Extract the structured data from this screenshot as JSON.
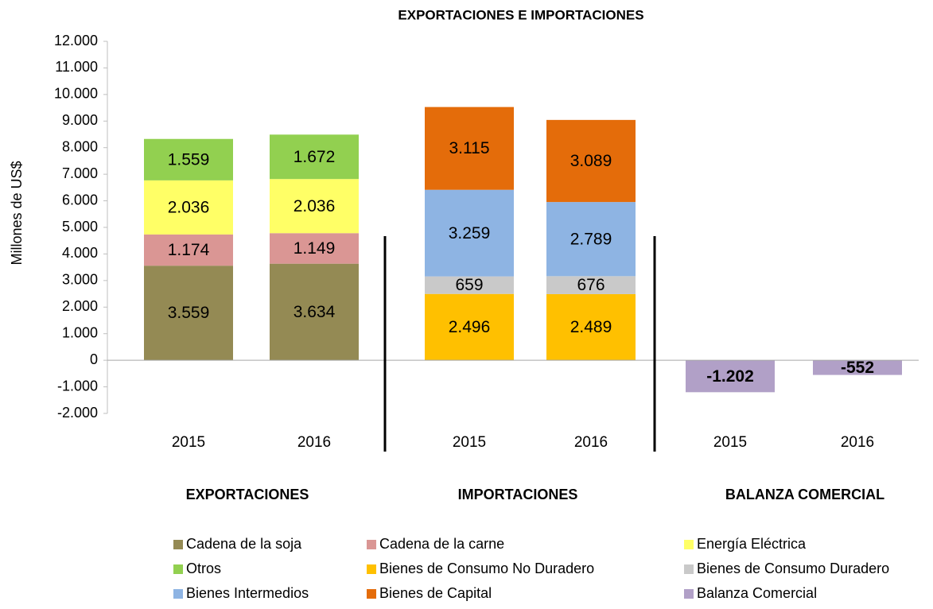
{
  "chart_data": {
    "type": "stacked_bar",
    "title": "EXPORTACIONES   E  IMPORTACIONES",
    "y_axis_label": "Millones de US$",
    "categories": [
      "2015",
      "2016",
      "2015",
      "2016",
      "2015",
      "2016"
    ],
    "groups": [
      "EXPORTACIONES",
      "IMPORTACIONES",
      "BALANZA COMERCIAL"
    ],
    "ylim": [
      -2000,
      12000
    ],
    "yticks": [
      {
        "value": -2000,
        "label": "-2.000"
      },
      {
        "value": -1000,
        "label": "-1.000"
      },
      0,
      {
        "value": 1000,
        "label": "1.000"
      },
      {
        "value": 2000,
        "label": "2.000"
      },
      {
        "value": 3000,
        "label": "3.000"
      },
      {
        "value": 4000,
        "label": "4.000"
      },
      {
        "value": 5000,
        "label": "5.000"
      },
      {
        "value": 6000,
        "label": "6.000"
      },
      {
        "value": 7000,
        "label": "7.000"
      },
      {
        "value": 8000,
        "label": "8.000"
      },
      {
        "value": 9000,
        "label": "9.000"
      },
      {
        "value": 10000,
        "label": "10.000"
      },
      {
        "value": 11000,
        "label": "11.000"
      },
      {
        "value": 12000,
        "label": "12.000"
      }
    ],
    "grid": false,
    "legend_position": "bottom",
    "series": [
      {
        "name": "Cadena de la soja",
        "color": "#948a54",
        "values": [
          3559,
          3634,
          null,
          null,
          null,
          null
        ],
        "value_labels": [
          "3.559",
          "3.634",
          null,
          null,
          null,
          null
        ]
      },
      {
        "name": "Cadena de la carne",
        "color": "#da9694",
        "values": [
          1174,
          1149,
          null,
          null,
          null,
          null
        ],
        "value_labels": [
          "1.174",
          "1.149",
          null,
          null,
          null,
          null
        ]
      },
      {
        "name": "Energía Eléctrica",
        "color": "#ffff66",
        "values": [
          2036,
          2036,
          null,
          null,
          null,
          null
        ],
        "value_labels": [
          "2.036",
          "2.036",
          null,
          null,
          null,
          null
        ]
      },
      {
        "name": "Otros",
        "color": "#92d050",
        "values": [
          1559,
          1672,
          null,
          null,
          null,
          null
        ],
        "value_labels": [
          "1.559",
          "1.672",
          null,
          null,
          null,
          null
        ]
      },
      {
        "name": "Bienes de Consumo No Duradero",
        "color": "#ffc000",
        "values": [
          null,
          null,
          2496,
          2489,
          null,
          null
        ],
        "value_labels": [
          null,
          null,
          "2.496",
          "2.489",
          null,
          null
        ]
      },
      {
        "name": "Bienes de Consumo Duradero",
        "color": "#c9c9c9",
        "values": [
          null,
          null,
          659,
          676,
          null,
          null
        ]
      },
      {
        "name": "Bienes Intermedios",
        "color": "#8eb4e3",
        "values": [
          null,
          null,
          3259,
          2789,
          null,
          null
        ],
        "value_labels": [
          null,
          null,
          "3.259",
          "2.789",
          null,
          null
        ]
      },
      {
        "name": "Bienes de Capital",
        "color": "#e46c0a",
        "values": [
          null,
          null,
          3115,
          3089,
          null,
          null
        ],
        "value_labels": [
          null,
          null,
          "3.115",
          "3.089",
          null,
          null
        ]
      },
      {
        "name": "Balanza Comercial",
        "color": "#b1a0c7",
        "values": [
          null,
          null,
          null,
          null,
          -1202,
          -552
        ],
        "value_labels": [
          null,
          null,
          null,
          null,
          "-1.202",
          "-552"
        ],
        "label_bold": true
      }
    ]
  }
}
